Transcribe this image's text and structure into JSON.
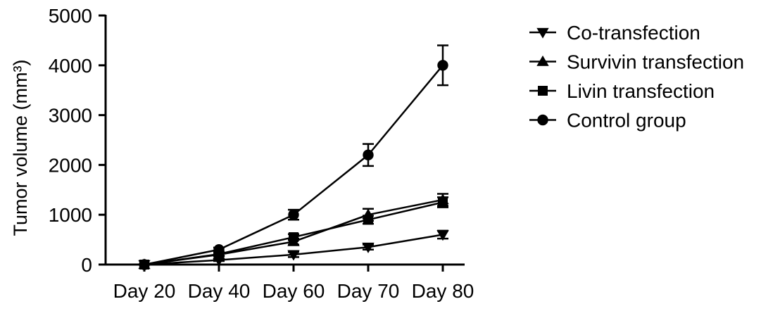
{
  "chart_data": {
    "type": "line",
    "categories": [
      "Day 20",
      "Day 40",
      "Day 60",
      "Day 70",
      "Day 80"
    ],
    "ylabel": "Tumor volume (mm³)",
    "ylim": [
      0,
      5000
    ],
    "yticks": [
      0,
      1000,
      2000,
      3000,
      4000,
      5000
    ],
    "grid": false,
    "legend_position": "right",
    "error_bars": true,
    "series": [
      {
        "name": "Co-transfection",
        "marker": "triangle-down",
        "color": "#000000",
        "values": [
          0,
          90,
          200,
          350,
          600
        ],
        "errors": [
          0,
          20,
          50,
          50,
          80
        ]
      },
      {
        "name": "Survivin transfection",
        "marker": "triangle-up",
        "color": "#000000",
        "values": [
          0,
          200,
          460,
          1000,
          1300
        ],
        "errors": [
          0,
          30,
          60,
          120,
          120
        ]
      },
      {
        "name": "Livin transfection",
        "marker": "square",
        "color": "#000000",
        "values": [
          0,
          210,
          550,
          900,
          1250
        ],
        "errors": [
          0,
          30,
          60,
          80,
          100
        ]
      },
      {
        "name": "Control group",
        "marker": "circle",
        "color": "#000000",
        "values": [
          0,
          300,
          1000,
          2200,
          4000
        ],
        "errors": [
          0,
          40,
          100,
          220,
          400
        ]
      }
    ]
  }
}
